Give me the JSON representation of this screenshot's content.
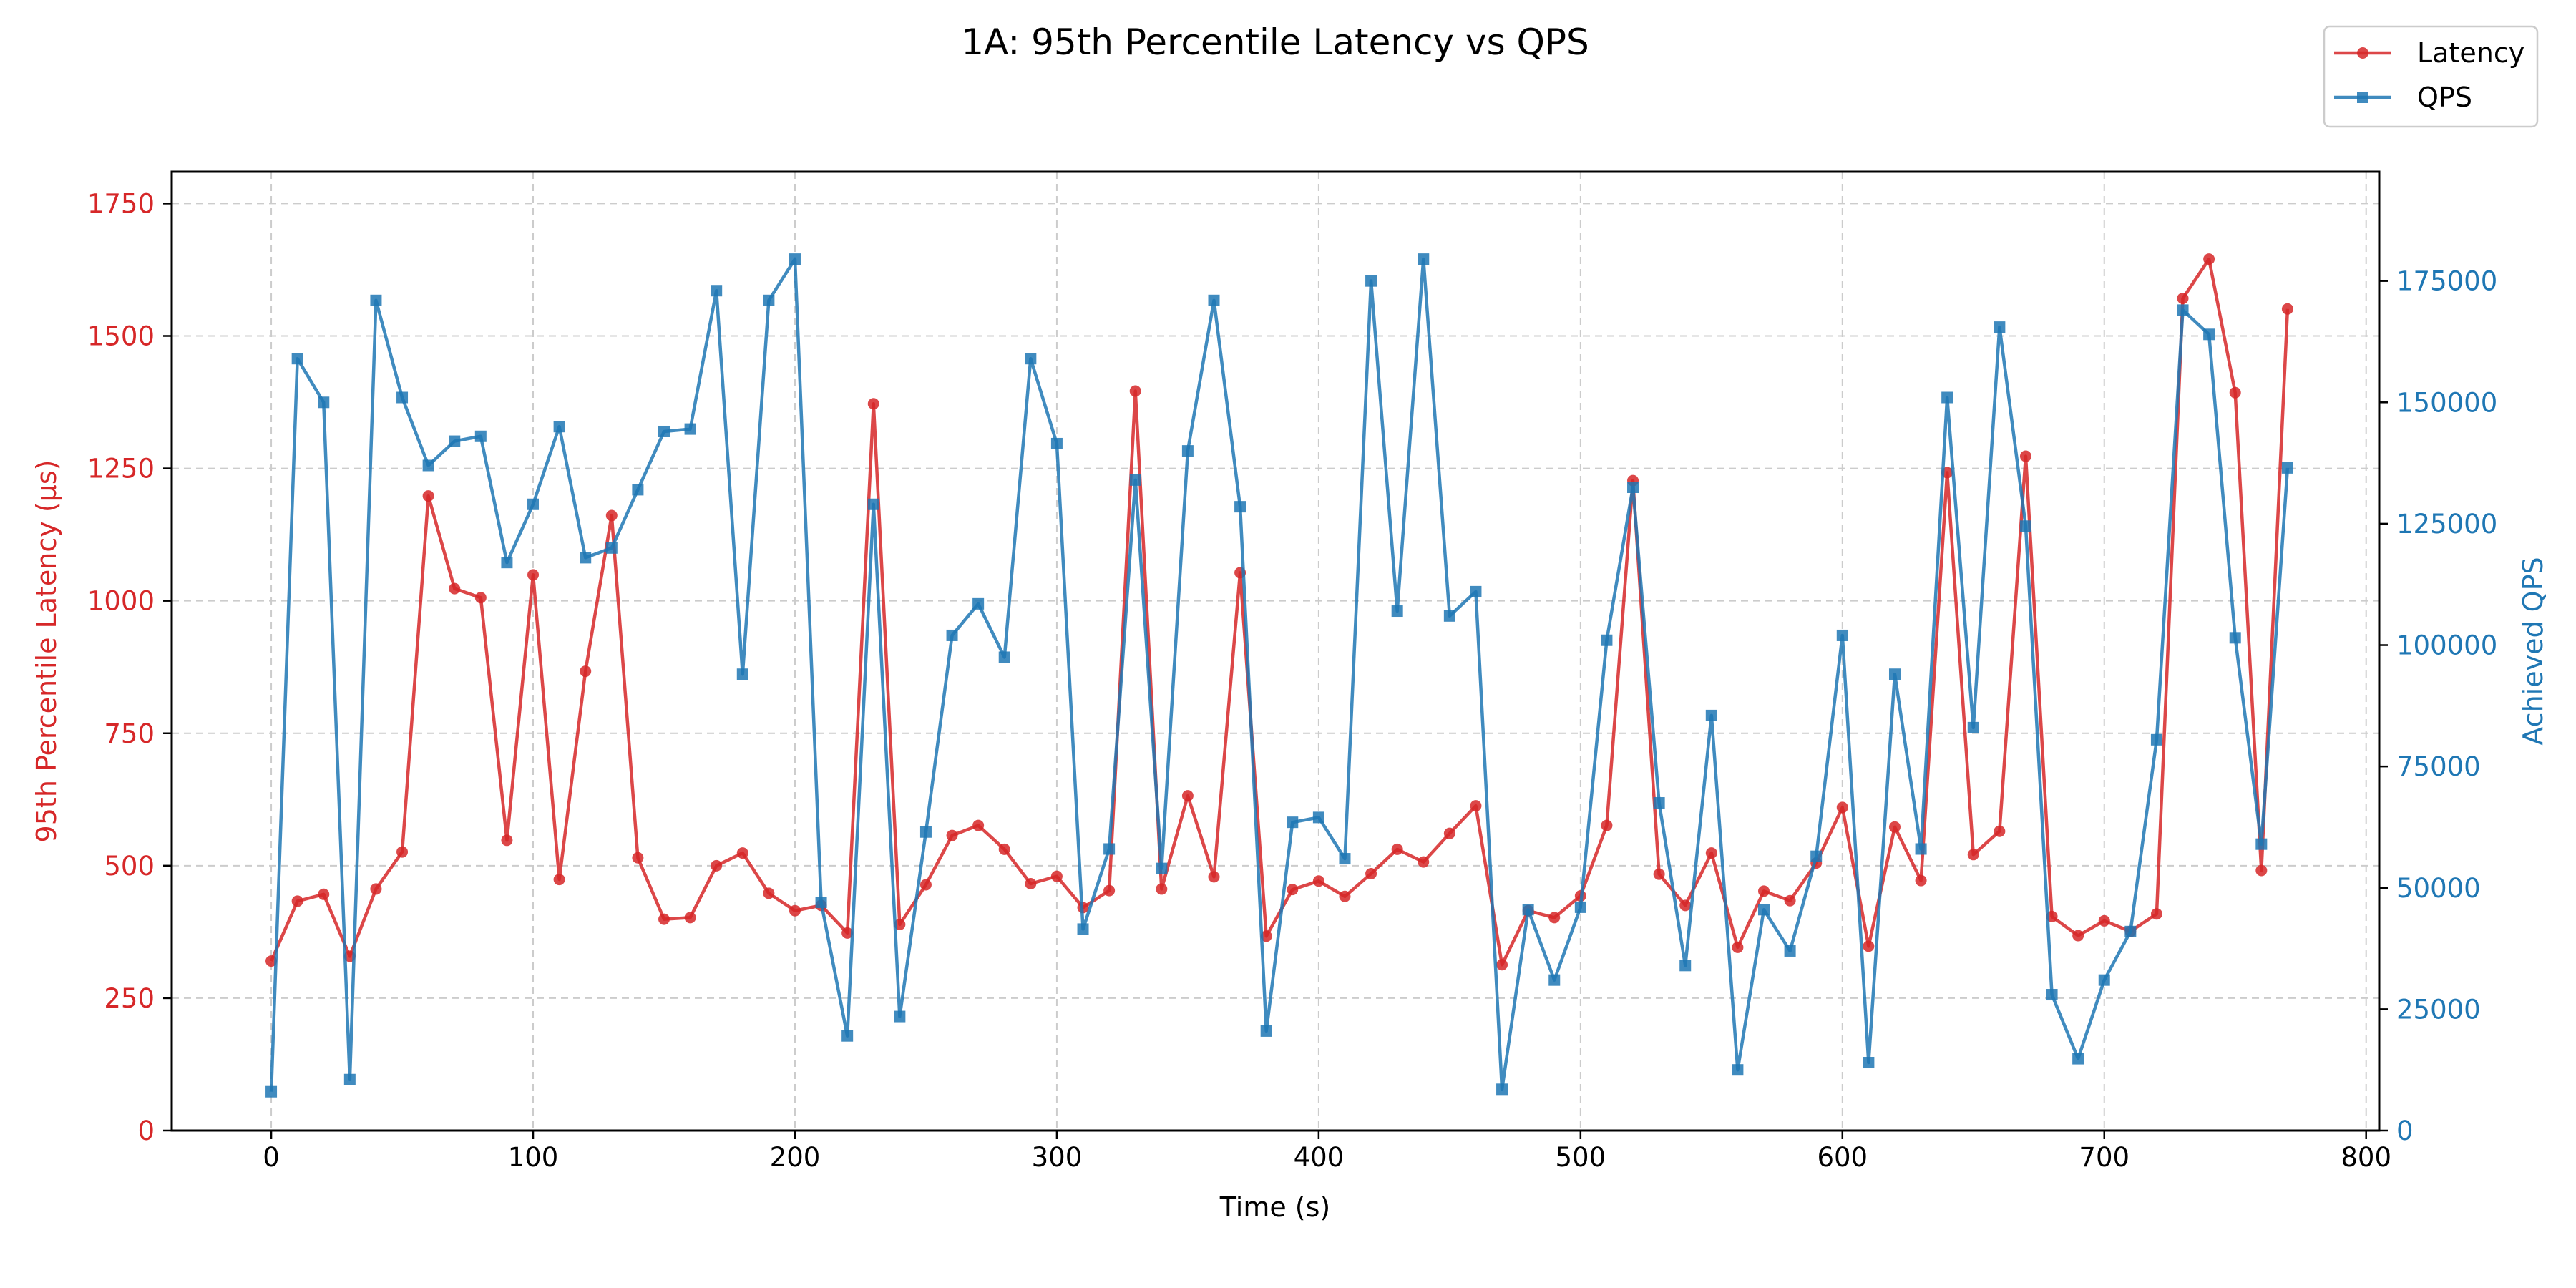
{
  "chart_data": {
    "type": "line",
    "title": "1A: 95th Percentile Latency vs QPS",
    "xlabel": "Time (s)",
    "ylabel_left": "95th Percentile Latency (µs)",
    "ylabel_right": "Achieved QPS",
    "xlim": [
      -38,
      805
    ],
    "ylim_left": [
      0,
      1810
    ],
    "ylim_right": [
      0,
      197500
    ],
    "x_ticks": [
      0,
      100,
      200,
      300,
      400,
      500,
      600,
      700,
      800
    ],
    "y_left_ticks": [
      0,
      250,
      500,
      750,
      1000,
      1250,
      1500,
      1750
    ],
    "y_right_ticks": [
      0,
      25000,
      50000,
      75000,
      100000,
      125000,
      150000,
      175000
    ],
    "grid": true,
    "legend_position": "top-right",
    "colors": {
      "latency": "#d62728",
      "qps": "#1f77b4",
      "axis": "#000000",
      "grid": "#cccccc"
    },
    "x": [
      0,
      10,
      20,
      30,
      40,
      50,
      60,
      70,
      80,
      90,
      100,
      110,
      120,
      130,
      140,
      150,
      160,
      170,
      180,
      190,
      200,
      210,
      220,
      230,
      240,
      250,
      260,
      270,
      280,
      290,
      300,
      310,
      320,
      330,
      340,
      350,
      360,
      370,
      380,
      390,
      400,
      410,
      420,
      430,
      440,
      450,
      460,
      470,
      480,
      490,
      500,
      510,
      520,
      530,
      540,
      550,
      560,
      570,
      580,
      590,
      600,
      610,
      620,
      630,
      640,
      650,
      660,
      670,
      680,
      690,
      700,
      710,
      720,
      730,
      740,
      750,
      760,
      770
    ],
    "series": [
      {
        "name": "Latency",
        "axis": "left",
        "marker": "circle",
        "values": [
          320,
          433,
          446,
          329,
          456,
          526,
          1198,
          1023,
          1006,
          548,
          1049,
          474,
          867,
          1161,
          515,
          399,
          402,
          500,
          524,
          448,
          415,
          425,
          373,
          1372,
          389,
          464,
          557,
          576,
          531,
          466,
          480,
          421,
          453,
          1396,
          456,
          632,
          479,
          1053,
          367,
          455,
          471,
          442,
          485,
          531,
          507,
          561,
          613,
          313,
          415,
          402,
          443,
          576,
          1227,
          484,
          425,
          524,
          346,
          452,
          434,
          505,
          610,
          348,
          573,
          472,
          1242,
          521,
          565,
          1273,
          404,
          368,
          396,
          376,
          409,
          1571,
          1645,
          1393,
          491,
          1551
        ]
      },
      {
        "name": "QPS",
        "axis": "right",
        "marker": "square",
        "values": [
          8000,
          159000,
          150000,
          10500,
          171000,
          151000,
          137000,
          142000,
          143000,
          117000,
          129000,
          145000,
          118000,
          120000,
          132000,
          144000,
          144500,
          173000,
          94000,
          171000,
          179500,
          47000,
          19500,
          129000,
          23500,
          61500,
          102000,
          108500,
          97500,
          159000,
          141500,
          41500,
          58000,
          134000,
          54000,
          140000,
          171000,
          128500,
          20500,
          63500,
          64500,
          56000,
          175000,
          107000,
          179500,
          106000,
          111000,
          8500,
          45500,
          31000,
          46000,
          101000,
          132500,
          67500,
          34000,
          85500,
          12500,
          45500,
          37000,
          56500,
          102000,
          14000,
          94000,
          58000,
          151000,
          83000,
          165500,
          124500,
          28000,
          14800,
          31000,
          41000,
          80500,
          169000,
          164000,
          101500,
          59000,
          136500
        ]
      }
    ]
  }
}
